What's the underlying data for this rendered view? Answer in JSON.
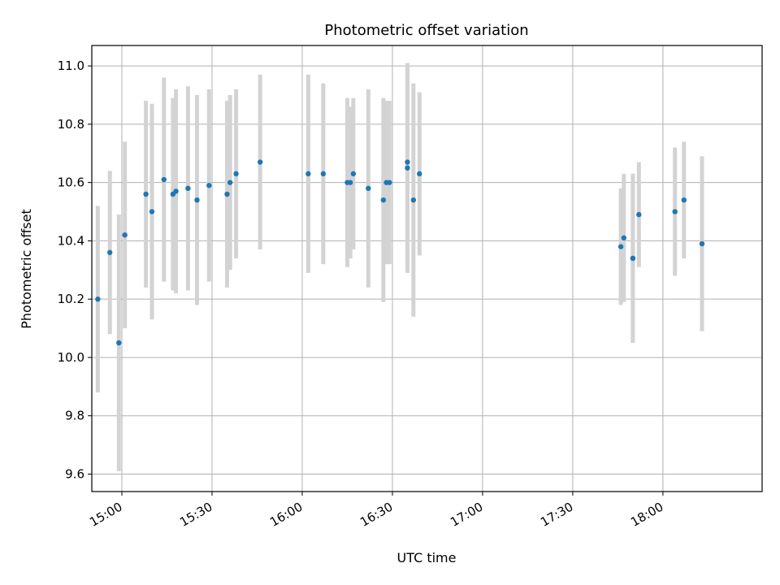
{
  "chart_data": {
    "type": "scatter",
    "title": "Photometric offset variation",
    "xlabel": "UTC time",
    "ylabel": "Photometric offset",
    "xlim": [
      "14:50",
      "18:33"
    ],
    "ylim": [
      9.54,
      11.07
    ],
    "x_ticks": [
      "15:00",
      "15:30",
      "16:00",
      "16:30",
      "17:00",
      "17:30",
      "18:00"
    ],
    "y_ticks": [
      9.6,
      9.8,
      10.0,
      10.2,
      10.4,
      10.6,
      10.8,
      11.0
    ],
    "grid": true,
    "marker_color": "#1f77b4",
    "errorbar_color": "#d3d3d3",
    "series": [
      {
        "points": [
          {
            "x": "14:59",
            "y": 10.05,
            "yerr": 0.44
          },
          {
            "x": "14:52",
            "y": 10.2,
            "yerr": 0.32
          },
          {
            "x": "14:56",
            "y": 10.36,
            "yerr": 0.28
          },
          {
            "x": "15:01",
            "y": 10.42,
            "yerr": 0.32
          },
          {
            "x": "15:08",
            "y": 10.56,
            "yerr": 0.32
          },
          {
            "x": "15:10",
            "y": 10.5,
            "yerr": 0.37
          },
          {
            "x": "15:14",
            "y": 10.61,
            "yerr": 0.35
          },
          {
            "x": "15:17",
            "y": 10.56,
            "yerr": 0.33
          },
          {
            "x": "15:18",
            "y": 10.57,
            "yerr": 0.35
          },
          {
            "x": "15:22",
            "y": 10.58,
            "yerr": 0.35
          },
          {
            "x": "15:25",
            "y": 10.54,
            "yerr": 0.36
          },
          {
            "x": "15:29",
            "y": 10.59,
            "yerr": 0.33
          },
          {
            "x": "15:35",
            "y": 10.56,
            "yerr": 0.32
          },
          {
            "x": "15:36",
            "y": 10.6,
            "yerr": 0.3
          },
          {
            "x": "15:38",
            "y": 10.63,
            "yerr": 0.29
          },
          {
            "x": "15:46",
            "y": 10.67,
            "yerr": 0.3
          },
          {
            "x": "16:02",
            "y": 10.63,
            "yerr": 0.34
          },
          {
            "x": "16:07",
            "y": 10.63,
            "yerr": 0.31
          },
          {
            "x": "16:15",
            "y": 10.6,
            "yerr": 0.29
          },
          {
            "x": "16:16",
            "y": 10.6,
            "yerr": 0.26
          },
          {
            "x": "16:17",
            "y": 10.63,
            "yerr": 0.26
          },
          {
            "x": "16:22",
            "y": 10.58,
            "yerr": 0.34
          },
          {
            "x": "16:27",
            "y": 10.54,
            "yerr": 0.35
          },
          {
            "x": "16:28",
            "y": 10.6,
            "yerr": 0.28
          },
          {
            "x": "16:29",
            "y": 10.6,
            "yerr": 0.28
          },
          {
            "x": "16:35",
            "y": 10.65,
            "yerr": 0.36
          },
          {
            "x": "16:35",
            "y": 10.67,
            "yerr": 0.33
          },
          {
            "x": "16:37",
            "y": 10.54,
            "yerr": 0.4
          },
          {
            "x": "16:39",
            "y": 10.63,
            "yerr": 0.28
          },
          {
            "x": "17:46",
            "y": 10.38,
            "yerr": 0.2
          },
          {
            "x": "17:47",
            "y": 10.41,
            "yerr": 0.22
          },
          {
            "x": "17:50",
            "y": 10.34,
            "yerr": 0.29
          },
          {
            "x": "17:50",
            "y": 10.34,
            "yerr": 0.29
          },
          {
            "x": "17:52",
            "y": 10.49,
            "yerr": 0.18
          },
          {
            "x": "18:04",
            "y": 10.5,
            "yerr": 0.22
          },
          {
            "x": "18:07",
            "y": 10.54,
            "yerr": 0.2
          },
          {
            "x": "18:13",
            "y": 10.39,
            "yerr": 0.3
          }
        ]
      }
    ]
  }
}
